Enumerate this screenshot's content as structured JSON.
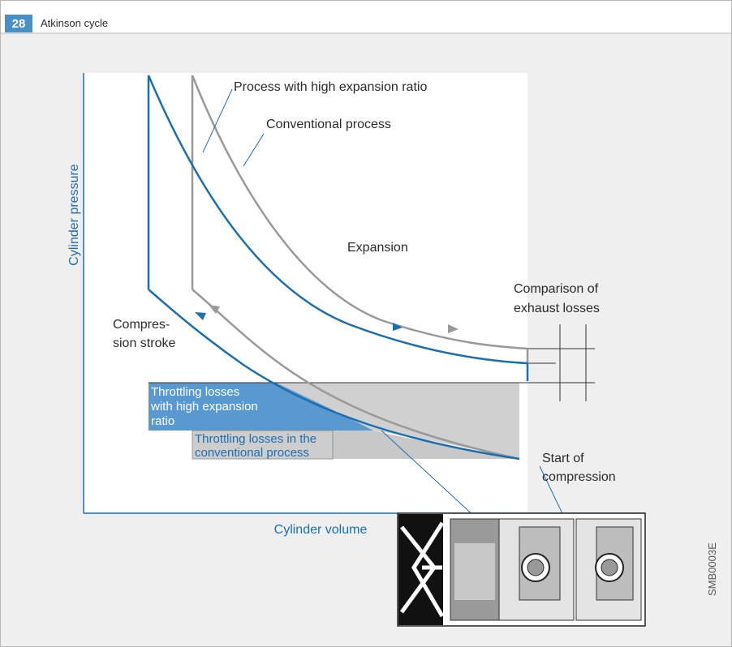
{
  "header": {
    "number": "28",
    "title": "Atkinson cycle"
  },
  "axes": {
    "y_label": "Cylinder pressure",
    "x_label": "Cylinder volume"
  },
  "labels": {
    "high_expansion": "Process with high expansion ratio",
    "conventional": "Conventional process",
    "expansion": "Expansion",
    "exhaust_losses": [
      "Comparison of",
      "exhaust losses"
    ],
    "compression_stroke": [
      "Compres-",
      "sion stroke"
    ],
    "throttling_high": [
      "Throttling losses",
      "with high expansion",
      "ratio"
    ],
    "throttling_conventional": [
      "Throttling losses in the",
      "conventional process"
    ],
    "start_compression": [
      "Start of",
      "compression"
    ]
  },
  "figure_code": "SMB0003E"
}
